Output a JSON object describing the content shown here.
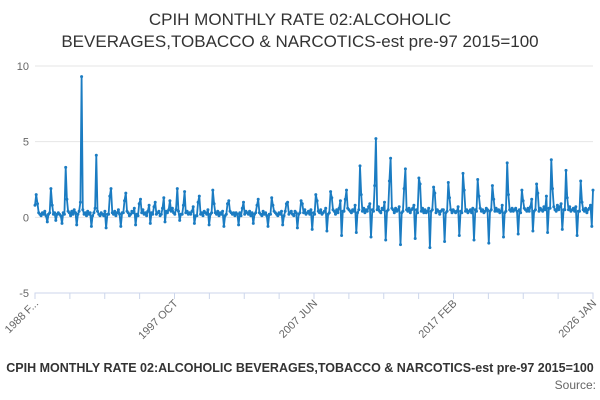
{
  "title": {
    "line1": "CPIH MONTHLY RATE 02:ALCOHOLIC",
    "line2": "BEVERAGES,TOBACCO & NARCOTICS-est pre-97 2015=100"
  },
  "footer": {
    "legend_label": "CPIH MONTHLY RATE 02:ALCOHOLIC BEVERAGES,TOBACCO & NARCOTICS-est pre-97 2015=100",
    "source_label": "Source:"
  },
  "chart_data": {
    "type": "line",
    "series_name": "CPIH MONTHLY RATE 02:ALCOHOLIC BEVERAGES,TOBACCO & NARCOTICS-est pre-97 2015=100",
    "frequency": "monthly",
    "x_start": "1988 FEB",
    "x_end": "2026 JAN",
    "x_tick_labels": [
      "1988 F...",
      "1997 OCT",
      "2007 JUN",
      "2017 FEB",
      "2026 JAN"
    ],
    "x_tick_count": 17,
    "x_labeled_every": 4,
    "y_ticks": [
      10,
      5,
      0,
      -5
    ],
    "y_tick_labels": [
      "10",
      "5",
      "0",
      "-5"
    ],
    "ylim": [
      -5,
      10
    ],
    "grid": true,
    "legend_position": "bottom",
    "line_color": "#1b7cc2",
    "grid_color": "#e6e6e6",
    "axis_color": "#ccd6eb",
    "label_color": "#666666",
    "title_color": "#333333",
    "values": [
      0.8,
      1.5,
      0.9,
      0.3,
      0.2,
      0.1,
      0.3,
      0.2,
      0.4,
      0.1,
      -0.3,
      0.2,
      0.3,
      1.9,
      0.8,
      0.2,
      0.3,
      -0.2,
      0.2,
      0.3,
      0.2,
      0.1,
      -0.4,
      0.3,
      0.2,
      3.3,
      1.2,
      0.4,
      0.3,
      0.1,
      0.4,
      0.2,
      0.5,
      0.3,
      -0.5,
      0.2,
      0.4,
      1.0,
      9.3,
      0.5,
      0.2,
      0.3,
      0.1,
      0.4,
      0.2,
      0.3,
      -0.6,
      0.1,
      0.3,
      0.6,
      4.1,
      0.4,
      0.2,
      0.1,
      0.3,
      0.2,
      0.1,
      0.4,
      -0.7,
      0.2,
      0.2,
      1.4,
      1.9,
      0.3,
      0.2,
      0.4,
      0.1,
      0.3,
      0.5,
      0.2,
      -0.6,
      0.3,
      0.3,
      1.1,
      1.6,
      0.4,
      0.3,
      0.1,
      0.2,
      0.4,
      0.3,
      0.6,
      -0.5,
      0.2,
      0.1,
      0.9,
      1.2,
      0.3,
      0.5,
      0.2,
      0.3,
      0.1,
      0.4,
      0.8,
      -0.4,
      0.3,
      0.2,
      0.7,
      1.0,
      0.2,
      0.3,
      0.4,
      0.1,
      0.2,
      0.6,
      1.3,
      -0.3,
      0.4,
      0.3,
      0.5,
      1.1,
      0.4,
      0.6,
      0.3,
      0.2,
      0.5,
      1.9,
      0.4,
      -0.2,
      0.2,
      0.2,
      0.8,
      1.7,
      0.3,
      0.4,
      0.2,
      0.3,
      0.2,
      0.4,
      0.7,
      -0.4,
      0.1,
      0.1,
      1.0,
      1.4,
      0.2,
      0.3,
      0.1,
      0.4,
      0.3,
      0.2,
      0.5,
      -0.5,
      0.2,
      0.3,
      1.8,
      0.9,
      0.3,
      0.2,
      0.4,
      0.1,
      0.3,
      0.2,
      0.4,
      -0.6,
      0.1,
      0.2,
      0.9,
      1.1,
      0.4,
      0.3,
      0.2,
      0.3,
      0.1,
      0.3,
      0.2,
      -0.5,
      0.3,
      0.1,
      0.6,
      1.0,
      0.2,
      0.4,
      0.3,
      0.2,
      0.4,
      0.1,
      0.3,
      -0.4,
      0.2,
      0.3,
      0.8,
      1.2,
      0.3,
      0.2,
      0.1,
      0.4,
      0.2,
      0.3,
      0.1,
      -0.6,
      0.2,
      0.2,
      1.3,
      0.8,
      0.4,
      0.3,
      0.2,
      0.1,
      0.3,
      0.2,
      0.4,
      -0.5,
      0.1,
      0.4,
      0.9,
      1.0,
      0.2,
      0.3,
      0.4,
      0.2,
      0.1,
      0.4,
      0.3,
      -0.7,
      0.2,
      0.3,
      1.1,
      0.9,
      0.3,
      0.5,
      0.2,
      0.3,
      0.4,
      0.2,
      0.5,
      -0.8,
      0.3,
      0.2,
      1.5,
      1.1,
      0.4,
      0.3,
      0.5,
      0.2,
      0.3,
      0.4,
      0.6,
      -0.9,
      0.2,
      0.3,
      1.7,
      1.3,
      0.5,
      0.4,
      0.2,
      0.5,
      0.3,
      0.6,
      1.1,
      -1.2,
      0.4,
      0.4,
      1.2,
      1.8,
      0.6,
      0.5,
      0.4,
      0.3,
      0.5,
      0.4,
      0.8,
      -1.0,
      0.3,
      0.5,
      3.4,
      1.5,
      0.4,
      0.6,
      0.3,
      0.5,
      0.4,
      0.7,
      0.9,
      -1.3,
      0.5,
      0.4,
      2.1,
      5.2,
      0.5,
      0.7,
      0.4,
      0.3,
      0.6,
      0.5,
      1.0,
      -1.5,
      0.4,
      0.5,
      2.4,
      3.9,
      0.6,
      0.5,
      0.3,
      0.6,
      0.4,
      0.5,
      0.7,
      -1.8,
      0.3,
      0.4,
      1.9,
      3.2,
      0.5,
      0.4,
      0.6,
      0.3,
      0.5,
      0.6,
      0.8,
      -1.4,
      0.5,
      0.3,
      2.6,
      2.2,
      0.4,
      0.6,
      0.3,
      0.5,
      0.3,
      0.4,
      0.6,
      -2.0,
      0.4,
      0.5,
      2.0,
      1.6,
      0.3,
      0.5,
      0.4,
      0.2,
      0.4,
      0.5,
      0.5,
      -1.6,
      0.3,
      0.4,
      2.3,
      1.3,
      0.5,
      0.3,
      0.5,
      0.4,
      0.3,
      0.4,
      0.7,
      -1.2,
      0.4,
      0.3,
      2.9,
      1.8,
      0.4,
      0.5,
      0.3,
      0.4,
      0.5,
      0.3,
      0.6,
      -1.5,
      0.5,
      0.4,
      2.5,
      1.4,
      0.6,
      0.4,
      0.5,
      0.3,
      0.4,
      0.6,
      0.5,
      -1.7,
      0.4,
      0.5,
      2.1,
      1.2,
      0.4,
      0.6,
      0.4,
      0.5,
      0.3,
      0.4,
      0.8,
      -1.3,
      0.3,
      0.4,
      3.6,
      1.5,
      0.5,
      0.4,
      0.6,
      0.4,
      0.5,
      0.6,
      0.4,
      -1.1,
      0.5,
      0.3,
      1.8,
      1.1,
      0.6,
      0.5,
      0.4,
      0.6,
      0.4,
      0.7,
      1.2,
      -0.9,
      0.4,
      0.5,
      2.2,
      1.6,
      0.4,
      0.6,
      0.5,
      0.4,
      0.7,
      0.5,
      1.4,
      -1.0,
      0.6,
      0.6,
      3.8,
      1.9,
      0.7,
      0.5,
      0.4,
      0.8,
      0.5,
      0.7,
      0.9,
      -0.8,
      0.5,
      0.5,
      3.1,
      1.3,
      0.5,
      0.7,
      0.4,
      0.5,
      0.6,
      0.4,
      0.7,
      -1.2,
      0.4,
      0.4,
      2.4,
      1.0,
      0.5,
      0.4,
      0.6,
      0.3,
      0.5,
      0.6,
      0.8,
      -0.6,
      1.8
    ]
  }
}
